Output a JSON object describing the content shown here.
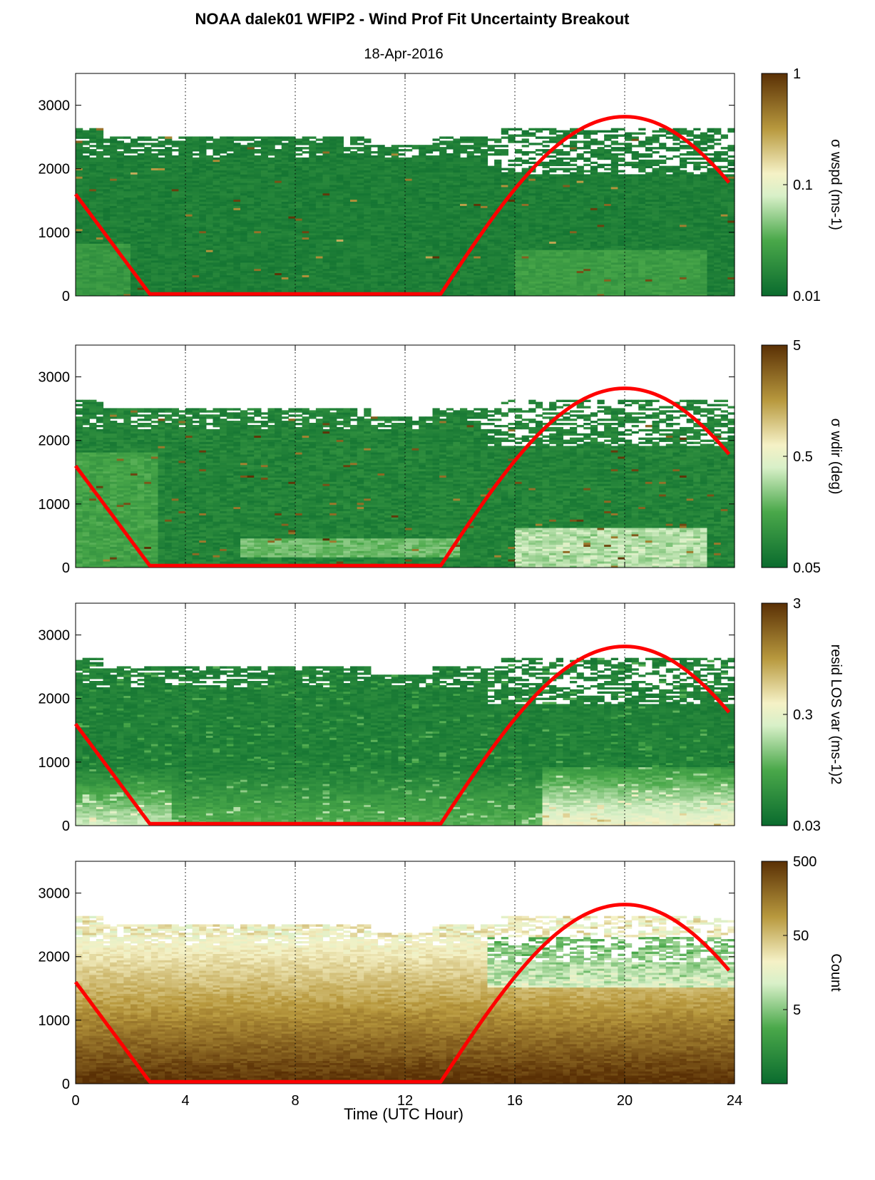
{
  "title": "NOAA dalek01 WFIP2 - Wind Prof Fit Uncertainty Breakout",
  "subtitle": "18-Apr-2016",
  "xlabel": "Time (UTC Hour)",
  "x_ticks": [
    "0",
    "4",
    "8",
    "12",
    "16",
    "20",
    "24"
  ],
  "y_ticks": [
    "0",
    "1000",
    "2000",
    "3000"
  ],
  "colors": {
    "curve": "#ff0000",
    "green_dark": "#0a6b2e",
    "brown_dark": "#5a3005"
  },
  "chart_data": [
    {
      "type": "heatmap",
      "xlim": [
        0,
        24
      ],
      "ylim": [
        0,
        3500
      ],
      "x_ticks": [
        0,
        4,
        8,
        12,
        16,
        20,
        24
      ],
      "y_ticks": [
        0,
        1000,
        2000,
        3000
      ],
      "xgrid": "dotted",
      "colorbar": {
        "label": "σ wspd (ms-1)",
        "scale": "log",
        "ticks": [
          "0.01",
          "0.1",
          "1"
        ],
        "range": [
          0.01,
          1
        ],
        "colormap": "green-white-brown"
      },
      "overlay_line": {
        "x": [
          0,
          2.7,
          13.3,
          20,
          23.8
        ],
        "y": [
          1600,
          30,
          30,
          2820,
          1750
        ]
      }
    },
    {
      "type": "heatmap",
      "xlim": [
        0,
        24
      ],
      "ylim": [
        0,
        3500
      ],
      "x_ticks": [
        0,
        4,
        8,
        12,
        16,
        20,
        24
      ],
      "y_ticks": [
        0,
        1000,
        2000,
        3000
      ],
      "xgrid": "dotted",
      "colorbar": {
        "label": "σ wdir (deg)",
        "scale": "log",
        "ticks": [
          "0.05",
          "0.5",
          "5"
        ],
        "range": [
          0.05,
          5
        ],
        "colormap": "green-white-brown"
      },
      "overlay_line": {
        "x": [
          0,
          2.7,
          13.3,
          20,
          23.8
        ],
        "y": [
          1600,
          30,
          30,
          2820,
          1750
        ]
      }
    },
    {
      "type": "heatmap",
      "xlim": [
        0,
        24
      ],
      "ylim": [
        0,
        3500
      ],
      "x_ticks": [
        0,
        4,
        8,
        12,
        16,
        20,
        24
      ],
      "y_ticks": [
        0,
        1000,
        2000,
        3000
      ],
      "xgrid": "dotted",
      "colorbar": {
        "label": "resid LOS var (ms-1)2",
        "scale": "log",
        "ticks": [
          "0.03",
          "0.3",
          "3"
        ],
        "range": [
          0.03,
          3
        ],
        "colormap": "green-white-brown"
      },
      "overlay_line": {
        "x": [
          0,
          2.7,
          13.3,
          20,
          23.8
        ],
        "y": [
          1600,
          30,
          30,
          2820,
          1750
        ]
      }
    },
    {
      "type": "heatmap",
      "xlim": [
        0,
        24
      ],
      "ylim": [
        0,
        3500
      ],
      "x_ticks": [
        0,
        4,
        8,
        12,
        16,
        20,
        24
      ],
      "y_ticks": [
        0,
        1000,
        2000,
        3000
      ],
      "xgrid": "dotted",
      "xlabel": "Time (UTC Hour)",
      "colorbar": {
        "label": "Count",
        "scale": "log",
        "ticks": [
          "5",
          "50",
          "500"
        ],
        "range": [
          0.5,
          500
        ],
        "colormap": "green-white-brown"
      },
      "overlay_line": {
        "x": [
          0,
          2.7,
          13.3,
          20,
          23.8
        ],
        "y": [
          1600,
          30,
          30,
          2820,
          1750
        ]
      }
    }
  ]
}
